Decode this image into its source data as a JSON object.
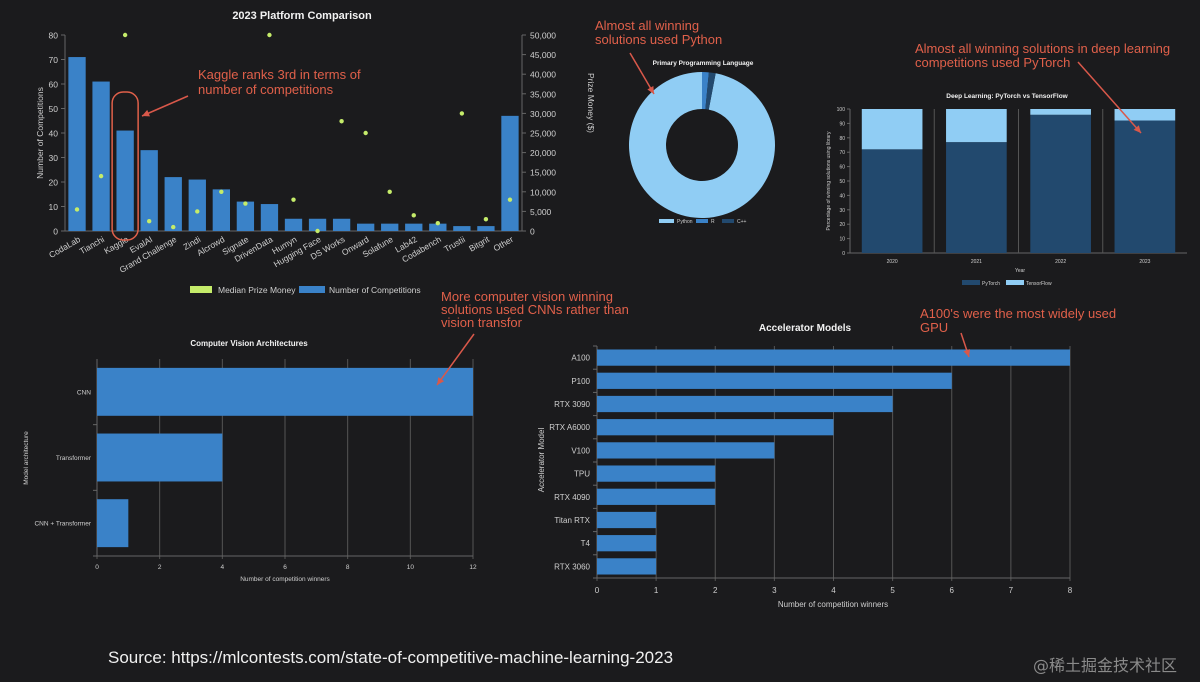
{
  "chart_data": [
    {
      "id": "platform",
      "type": "bar",
      "title": "2023 Platform Comparison",
      "xlabel": "",
      "ylabel": "Number of Competitions",
      "y2label": "Prize Money ($)",
      "ylim": [
        0,
        80
      ],
      "y2lim": [
        0,
        50000
      ],
      "yticks": [
        "0",
        "10",
        "20",
        "30",
        "40",
        "50",
        "60",
        "70",
        "80"
      ],
      "y2ticks": [
        "0",
        "5,000",
        "10,000",
        "15,000",
        "20,000",
        "25,000",
        "30,000",
        "35,000",
        "40,000",
        "45,000",
        "50,000"
      ],
      "categories": [
        "CodaLab",
        "Tianchi",
        "Kaggle",
        "EvalAI",
        "Grand Challenge",
        "Zindi",
        "Alcrowd",
        "Signate",
        "DrivenData",
        "Humyn",
        "Hugging Face",
        "DS Works",
        "Onward",
        "Solafune",
        "Lab42",
        "Codabench",
        "Trustii",
        "Bitgrit",
        "Other"
      ],
      "series": [
        {
          "name": "Median Prize Money",
          "type": "scatter",
          "axis": "right",
          "color": "#c5ec6a",
          "values": [
            5500,
            14000,
            50000,
            2500,
            1000,
            5000,
            10000,
            7000,
            50000,
            8000,
            0,
            28000,
            25000,
            10000,
            4000,
            2000,
            30000,
            3000,
            8000
          ]
        },
        {
          "name": "Number of Competitions",
          "type": "bar",
          "axis": "left",
          "color": "#3a82c8",
          "values": [
            71,
            61,
            41,
            33,
            22,
            21,
            17,
            12,
            11,
            5,
            5,
            5,
            3,
            3,
            3,
            3,
            2,
            2,
            47
          ]
        }
      ],
      "legend": [
        "Median Prize Money",
        "Number of Competitions"
      ],
      "legend_position": "bottom",
      "annotation": "Kaggle ranks 3rd in terms of number of competitions"
    },
    {
      "id": "language",
      "type": "pie",
      "title": "Primary Programming Language",
      "categories": [
        "Python",
        "R",
        "C++"
      ],
      "values": [
        97,
        1.5,
        1.5
      ],
      "colors": [
        "#90cdf4",
        "#3a82c8",
        "#22496e"
      ],
      "legend_position": "bottom",
      "annotation": "Almost all winning solutions used Python"
    },
    {
      "id": "deep-learning",
      "type": "bar",
      "stacked": true,
      "title": "Deep Learning: PyTorch vs TensorFlow",
      "xlabel": "Year",
      "ylabel": "Percentage of winning solutions using library",
      "ylim": [
        0,
        100
      ],
      "yticks": [
        "0",
        "10",
        "20",
        "30",
        "40",
        "50",
        "60",
        "70",
        "80",
        "90",
        "100"
      ],
      "categories": [
        "2020",
        "2021",
        "2022",
        "2023"
      ],
      "series": [
        {
          "name": "PyTorch",
          "color": "#22496e",
          "values": [
            72,
            77,
            96,
            92
          ]
        },
        {
          "name": "TensorFlow",
          "color": "#90cdf4",
          "values": [
            28,
            23,
            4,
            8
          ]
        }
      ],
      "legend_position": "bottom",
      "annotation": "Almost all winning solutions in deep learning competitions used PyTorch"
    },
    {
      "id": "cv-arch",
      "type": "bar",
      "orientation": "horizontal",
      "title": "Computer Vision Architectures",
      "xlabel": "Number of competition winners",
      "ylabel": "Model architecture",
      "xlim": [
        0,
        12
      ],
      "xticks": [
        "0",
        "2",
        "4",
        "6",
        "8",
        "10",
        "12"
      ],
      "categories": [
        "CNN",
        "Transformer",
        "CNN + Transformer"
      ],
      "values": [
        12,
        4,
        1
      ],
      "color": "#3a82c8",
      "annotation": "More computer vision winning solutions used CNNs rather than vision transfor"
    },
    {
      "id": "accelerators",
      "type": "bar",
      "orientation": "horizontal",
      "title": "Accelerator Models",
      "xlabel": "Number of competition winners",
      "ylabel": "Accelerator Model",
      "xlim": [
        0,
        8
      ],
      "xticks": [
        "0",
        "1",
        "2",
        "3",
        "4",
        "5",
        "6",
        "7",
        "8"
      ],
      "categories": [
        "A100",
        "P100",
        "RTX 3090",
        "RTX A6000",
        "V100",
        "TPU",
        "RTX 4090",
        "Titan RTX",
        "T4",
        "RTX 3060"
      ],
      "values": [
        8,
        6,
        5,
        4,
        3,
        2,
        2,
        1,
        1,
        1
      ],
      "color": "#3a82c8",
      "annotation": "A100's were the most widely used GPU"
    }
  ],
  "footer": {
    "source": "Source: https://mlcontests.com/state-of-competitive-machine-learning-2023",
    "watermark": "@稀土掘金技术社区"
  }
}
